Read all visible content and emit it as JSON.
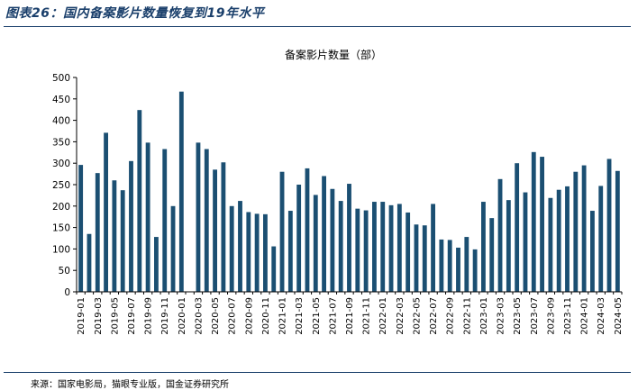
{
  "figure_title": "图表26：国内备案影片数量恢复到19年水平",
  "source": "来源：国家电影局，猫眼专业版，国金证券研究所",
  "colors": {
    "bar": "#1b4f72",
    "title": "#1a3f6b"
  },
  "chart_data": {
    "type": "bar",
    "title": "备案影片数量（部）",
    "xlabel": "",
    "ylabel": "",
    "ylim": [
      0,
      500
    ],
    "yticks": [
      0,
      50,
      100,
      150,
      200,
      250,
      300,
      350,
      400,
      450,
      500
    ],
    "grid": false,
    "legend": "none",
    "categories": [
      "2019-01",
      "2019-02",
      "2019-03",
      "2019-04",
      "2019-05",
      "2019-06",
      "2019-07",
      "2019-08",
      "2019-09",
      "2019-10",
      "2019-11",
      "2019-12",
      "2020-01",
      "2020-02",
      "2020-03",
      "2020-04",
      "2020-05",
      "2020-06",
      "2020-07",
      "2020-08",
      "2020-09",
      "2020-10",
      "2020-11",
      "2020-12",
      "2021-01",
      "2021-02",
      "2021-03",
      "2021-04",
      "2021-05",
      "2021-06",
      "2021-07",
      "2021-08",
      "2021-09",
      "2021-10",
      "2021-11",
      "2021-12",
      "2022-01",
      "2022-02",
      "2022-03",
      "2022-04",
      "2022-05",
      "2022-06",
      "2022-07",
      "2022-08",
      "2022-09",
      "2022-10",
      "2022-11",
      "2022-12",
      "2023-01",
      "2023-02",
      "2023-03",
      "2023-04",
      "2023-05",
      "2023-06",
      "2023-07",
      "2023-08",
      "2023-09",
      "2023-10",
      "2023-11",
      "2023-12",
      "2024-01",
      "2024-02",
      "2024-03",
      "2024-04",
      "2024-05"
    ],
    "tick_labels": [
      "2019-01",
      "2019-03",
      "2019-05",
      "2019-07",
      "2019-09",
      "2019-11",
      "2020-01",
      "2020-03",
      "2020-05",
      "2020-07",
      "2020-09",
      "2020-11",
      "2021-01",
      "2021-03",
      "2021-05",
      "2021-07",
      "2021-09",
      "2021-11",
      "2022-01",
      "2022-03",
      "2022-05",
      "2022-07",
      "2022-09",
      "2022-11",
      "2023-01",
      "2023-03",
      "2023-05",
      "2023-07",
      "2023-09",
      "2023-11",
      "2024-01",
      "2024-03",
      "2024-05"
    ],
    "values": [
      296,
      135,
      277,
      371,
      260,
      237,
      305,
      424,
      348,
      128,
      333,
      200,
      467,
      0,
      348,
      333,
      285,
      302,
      200,
      212,
      186,
      182,
      181,
      106,
      280,
      189,
      250,
      288,
      226,
      270,
      240,
      212,
      252,
      194,
      190,
      210,
      210,
      202,
      205,
      185,
      157,
      155,
      205,
      122,
      121,
      103,
      128,
      99,
      210,
      172,
      263,
      214,
      300,
      232,
      326,
      315,
      219,
      238,
      246,
      280,
      295,
      189,
      247,
      310,
      282
    ]
  }
}
